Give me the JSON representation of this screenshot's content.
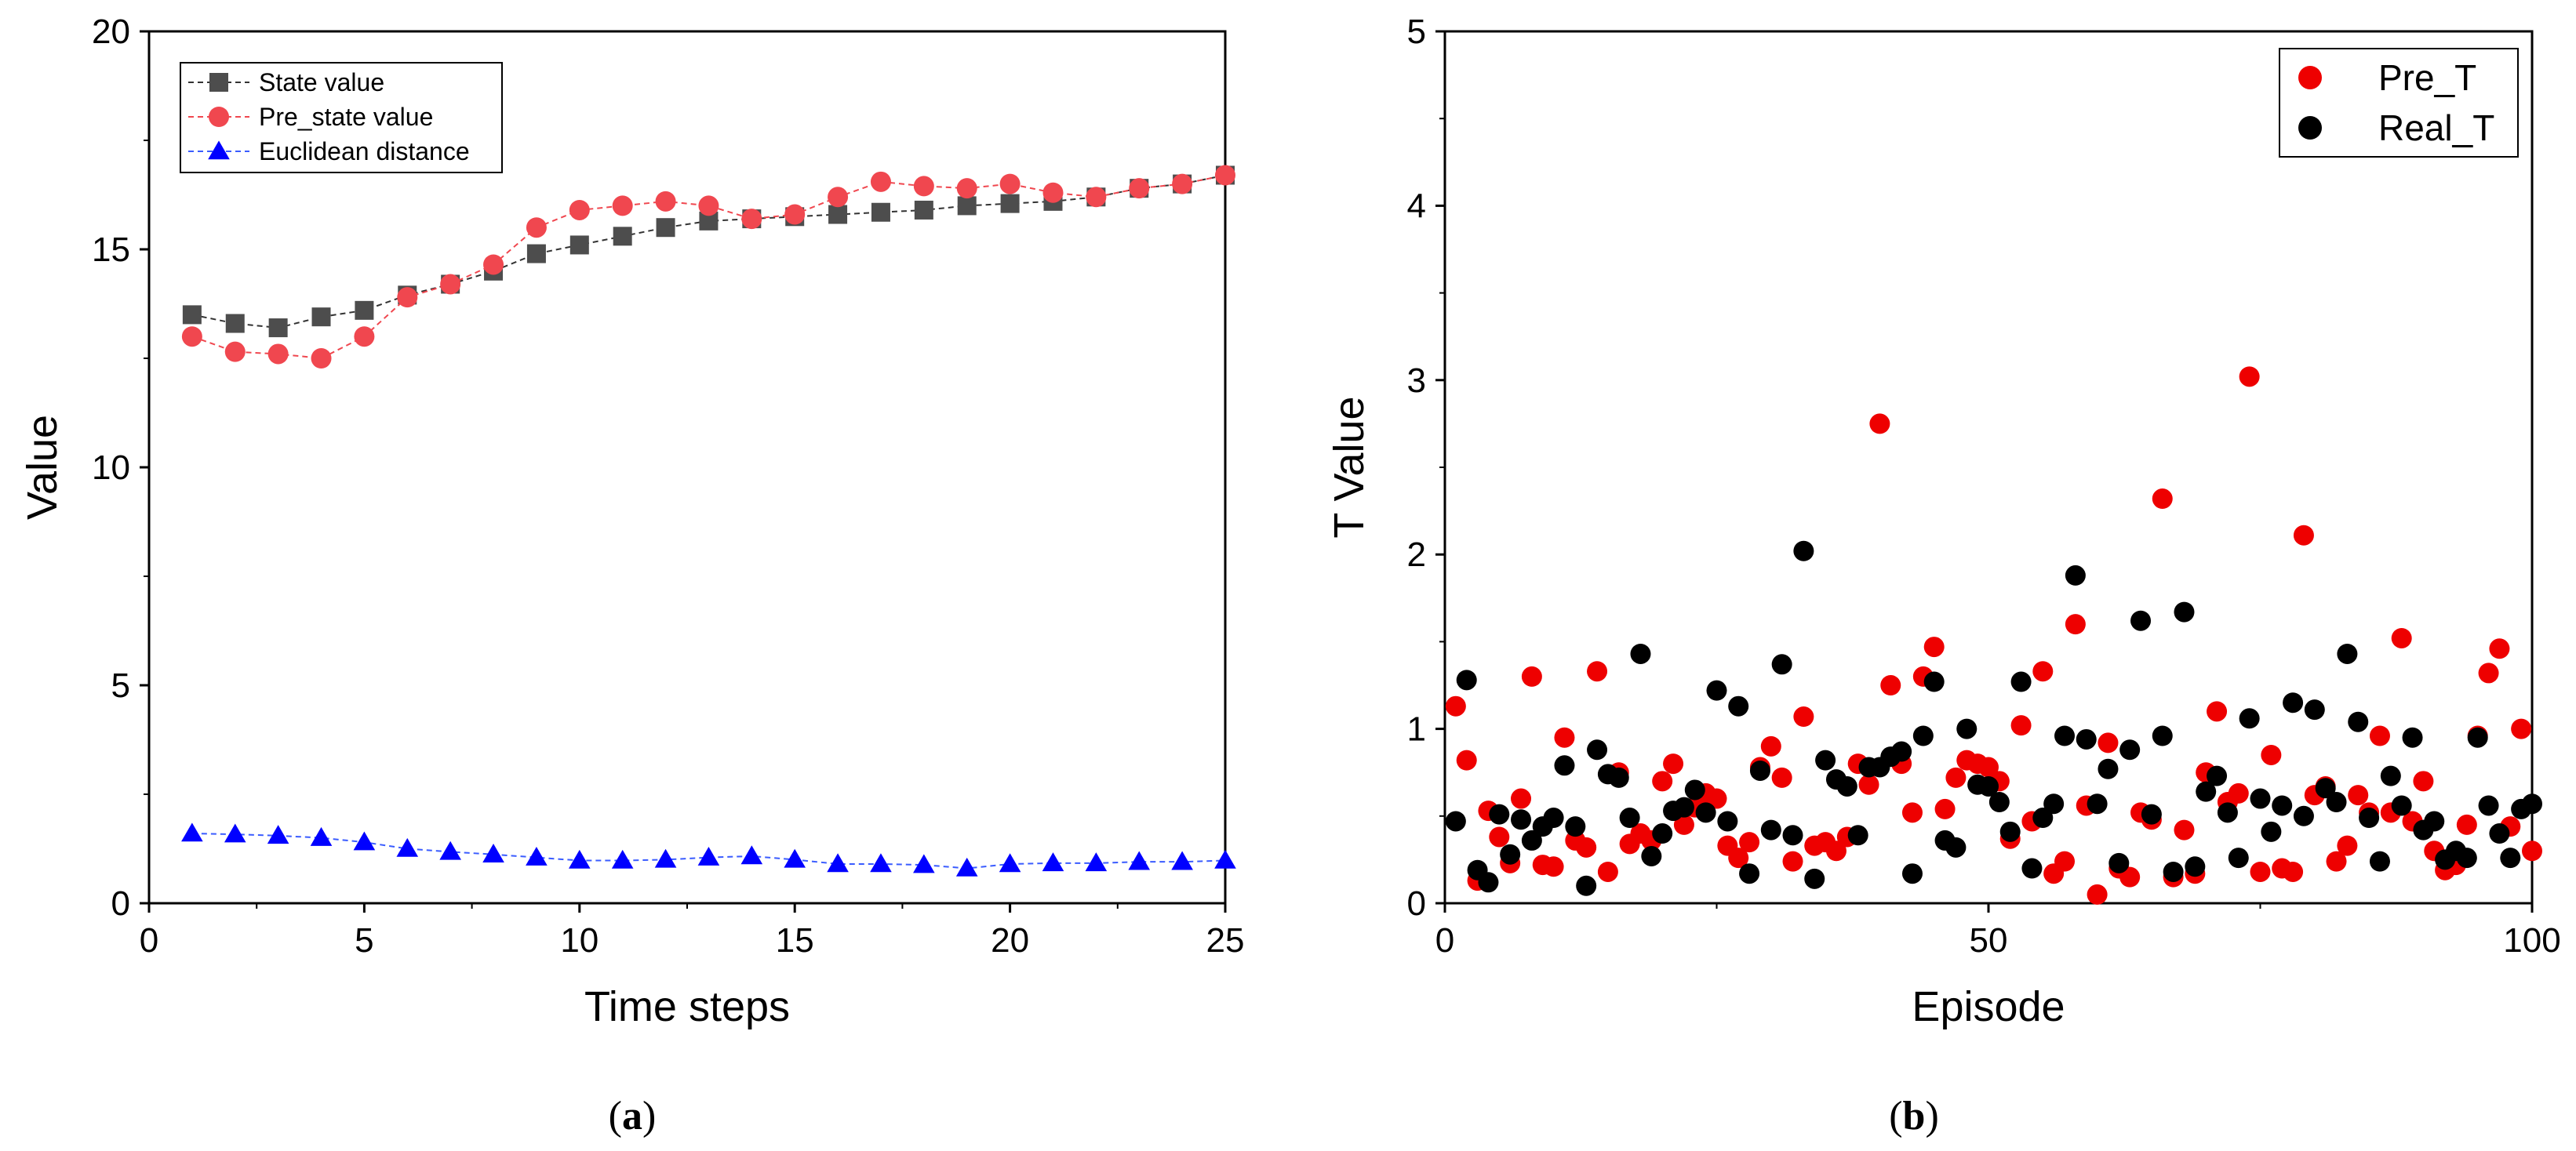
{
  "colors": {
    "state_value": "#4d4d4d",
    "pre_state_value": "#f0474f",
    "euclidean": "#0000ff",
    "pre_t": "#ee0000",
    "real_t": "#000000"
  },
  "captions": {
    "a_letter": "a",
    "b_letter": "b"
  },
  "chart_data": [
    {
      "type": "line",
      "xlabel": "Time steps",
      "ylabel": "Value",
      "xlim": [
        0,
        25
      ],
      "ylim": [
        0,
        20
      ],
      "xticks": [
        "0",
        "5",
        "10",
        "15",
        "20",
        "25"
      ],
      "yticks": [
        "0",
        "5",
        "10",
        "15",
        "20"
      ],
      "legend_position": "top-left",
      "x": [
        1,
        2,
        3,
        4,
        5,
        6,
        7,
        8,
        9,
        10,
        11,
        12,
        13,
        14,
        15,
        16,
        17,
        18,
        19,
        20,
        21,
        22,
        23,
        24,
        25
      ],
      "series": [
        {
          "name": "State value",
          "marker": "square",
          "values": [
            13.5,
            13.3,
            13.2,
            13.45,
            13.6,
            13.95,
            14.2,
            14.5,
            14.9,
            15.1,
            15.3,
            15.5,
            15.65,
            15.7,
            15.75,
            15.8,
            15.85,
            15.9,
            16.0,
            16.05,
            16.1,
            16.2,
            16.4,
            16.5,
            16.7
          ]
        },
        {
          "name": "Pre_state value",
          "marker": "circle",
          "values": [
            13.0,
            12.65,
            12.6,
            12.5,
            13.0,
            13.9,
            14.2,
            14.65,
            15.5,
            15.9,
            16.0,
            16.1,
            16.0,
            15.7,
            15.8,
            16.2,
            16.55,
            16.45,
            16.4,
            16.5,
            16.3,
            16.2,
            16.4,
            16.5,
            16.7
          ]
        },
        {
          "name": "Euclidean distance",
          "marker": "triangle",
          "values": [
            1.6,
            1.58,
            1.55,
            1.5,
            1.4,
            1.25,
            1.18,
            1.12,
            1.05,
            0.98,
            0.98,
            1.0,
            1.05,
            1.08,
            1.0,
            0.9,
            0.9,
            0.88,
            0.8,
            0.9,
            0.92,
            0.92,
            0.95,
            0.95,
            0.98
          ]
        }
      ]
    },
    {
      "type": "scatter",
      "xlabel": "Episode",
      "ylabel": "T Value",
      "xlim": [
        0,
        100
      ],
      "ylim": [
        0,
        5
      ],
      "xticks": [
        "0",
        "50",
        "100"
      ],
      "yticks": [
        "0",
        "1",
        "2",
        "3",
        "4",
        "5"
      ],
      "legend_position": "top-right",
      "x": [
        1,
        2,
        3,
        4,
        5,
        6,
        7,
        8,
        9,
        10,
        11,
        12,
        13,
        14,
        15,
        16,
        17,
        18,
        19,
        20,
        21,
        22,
        23,
        24,
        25,
        26,
        27,
        28,
        29,
        30,
        31,
        32,
        33,
        34,
        35,
        36,
        37,
        38,
        39,
        40,
        41,
        42,
        43,
        44,
        45,
        46,
        47,
        48,
        49,
        50,
        51,
        52,
        53,
        54,
        55,
        56,
        57,
        58,
        59,
        60,
        61,
        62,
        63,
        64,
        65,
        66,
        67,
        68,
        69,
        70,
        71,
        72,
        73,
        74,
        75,
        76,
        77,
        78,
        79,
        80,
        81,
        82,
        83,
        84,
        85,
        86,
        87,
        88,
        89,
        90,
        91,
        92,
        93,
        94,
        95,
        96,
        97,
        98,
        99,
        100
      ],
      "series": [
        {
          "name": "Pre_T",
          "values": [
            1.13,
            0.82,
            0.13,
            0.53,
            0.38,
            0.23,
            0.6,
            1.3,
            0.22,
            0.21,
            0.95,
            0.36,
            0.32,
            1.33,
            0.18,
            0.75,
            0.34,
            0.4,
            0.36,
            0.7,
            0.8,
            0.45,
            0.55,
            0.63,
            0.6,
            0.33,
            0.26,
            0.35,
            0.78,
            0.9,
            0.72,
            0.24,
            1.07,
            0.33,
            0.35,
            0.3,
            0.38,
            0.8,
            0.68,
            2.75,
            1.25,
            0.8,
            0.52,
            1.3,
            1.47,
            0.54,
            0.72,
            0.82,
            0.8,
            0.78,
            0.7,
            0.37,
            1.02,
            0.47,
            1.33,
            0.17,
            0.24,
            1.6,
            0.56,
            0.05,
            0.92,
            0.2,
            0.15,
            0.52,
            0.48,
            2.32,
            0.15,
            0.42,
            0.17,
            0.75,
            1.1,
            0.58,
            0.63,
            3.02,
            0.18,
            0.85,
            0.2,
            0.18,
            2.11,
            0.62,
            0.67,
            0.24,
            0.33,
            0.62,
            0.52,
            0.96,
            0.52,
            1.52,
            0.47,
            0.7,
            0.3,
            0.19,
            0.22,
            0.45,
            0.96,
            1.32,
            1.46,
            0.44,
            1.0,
            0.3
          ]
        },
        {
          "name": "Real_T",
          "values": [
            0.47,
            1.28,
            0.19,
            0.12,
            0.51,
            0.28,
            0.48,
            0.36,
            0.44,
            0.49,
            0.79,
            0.44,
            0.1,
            0.88,
            0.74,
            0.72,
            0.49,
            1.43,
            0.27,
            0.4,
            0.53,
            0.55,
            0.65,
            0.52,
            1.22,
            0.47,
            1.13,
            0.17,
            0.76,
            0.42,
            1.37,
            0.39,
            2.02,
            0.14,
            0.82,
            0.71,
            0.67,
            0.39,
            0.78,
            0.78,
            0.84,
            0.87,
            0.17,
            0.96,
            1.27,
            0.36,
            0.32,
            1.0,
            0.68,
            0.67,
            0.58,
            0.41,
            1.27,
            0.2,
            0.49,
            0.57,
            0.96,
            1.88,
            0.94,
            0.57,
            0.77,
            0.23,
            0.88,
            1.62,
            0.51,
            0.96,
            0.18,
            1.67,
            0.21,
            0.64,
            0.73,
            0.52,
            0.26,
            1.06,
            0.6,
            0.41,
            0.56,
            1.15,
            0.5,
            1.11,
            0.66,
            0.58,
            1.43,
            1.04,
            0.49,
            0.24,
            0.73,
            0.56,
            0.95,
            0.42,
            0.47,
            0.25,
            0.3,
            0.26,
            0.95,
            0.56,
            0.4,
            0.26,
            0.54,
            0.57
          ]
        }
      ]
    }
  ]
}
